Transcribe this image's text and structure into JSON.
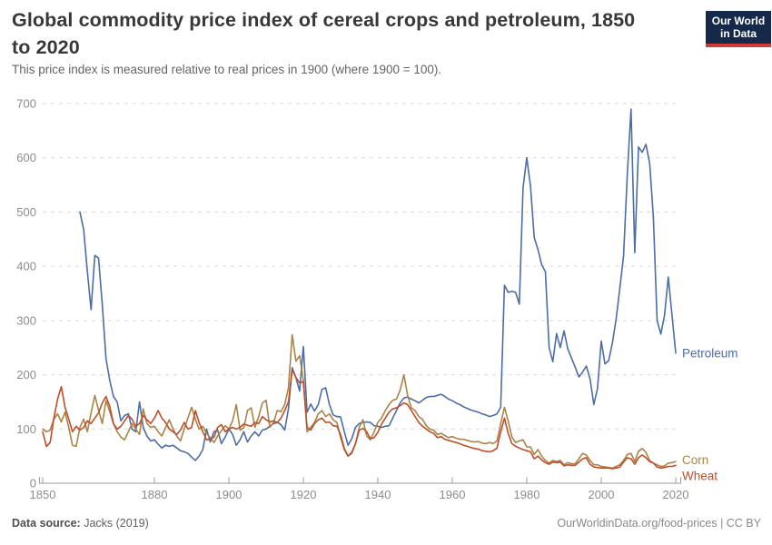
{
  "header": {
    "title": "Global commodity price index of cereal crops and petroleum, 1850 to 2020",
    "subtitle": "This price index is measured relative to real prices in 1900 (where 1900 = 100).",
    "logo": {
      "line1": "Our World",
      "line2": "in Data"
    }
  },
  "footer": {
    "datasource_label": "Data source:",
    "datasource_value": " Jacks (2019)",
    "credit": "OurWorldinData.org/food-prices | CC BY"
  },
  "chart_data": {
    "type": "line",
    "title": "Global commodity price index of cereal crops and petroleum, 1850 to 2020",
    "subtitle": "This price index is measured relative to real prices in 1900 (where 1900 = 100).",
    "xlabel": "",
    "ylabel": "",
    "xlim": [
      1850,
      2020
    ],
    "ylim": [
      0,
      700
    ],
    "xticks": [
      1850,
      1880,
      1900,
      1920,
      1940,
      1960,
      1980,
      2000,
      2020
    ],
    "yticks": [
      0,
      100,
      200,
      300,
      400,
      500,
      600,
      700
    ],
    "grid": "horizontal-dashed",
    "legend_position": "line-end-labels",
    "colors": {
      "grid": "#d9d9d9",
      "axis": "#9a9a9a",
      "tick_text": "#8c8c8c"
    },
    "series": [
      {
        "name": "Petroleum",
        "color": "#4c6da5",
        "start_year": 1860,
        "values": [
          500,
          468,
          390,
          320,
          420,
          415,
          330,
          230,
          190,
          160,
          150,
          115,
          125,
          128,
          100,
          95,
          150,
          103,
          87,
          78,
          80,
          72,
          65,
          70,
          68,
          70,
          65,
          60,
          58,
          55,
          48,
          42,
          50,
          62,
          100,
          76,
          95,
          98,
          73,
          85,
          100,
          90,
          70,
          80,
          95,
          76,
          87,
          95,
          87,
          98,
          100,
          105,
          110,
          112,
          108,
          98,
          137,
          213,
          195,
          170,
          252,
          131,
          146,
          133,
          145,
          173,
          176,
          145,
          126,
          123,
          122,
          95,
          70,
          82,
          103,
          110,
          112,
          113,
          112,
          106,
          105,
          103,
          105,
          106,
          120,
          134,
          148,
          157,
          159,
          155,
          152,
          148,
          153,
          158,
          160,
          160,
          162,
          164,
          160,
          155,
          152,
          148,
          145,
          141,
          138,
          135,
          133,
          131,
          128,
          126,
          123,
          125,
          128,
          140,
          365,
          352,
          354,
          352,
          330,
          545,
          600,
          548,
          453,
          431,
          403,
          390,
          250,
          224,
          276,
          250,
          281,
          248,
          231,
          214,
          196,
          205,
          216,
          192,
          145,
          175,
          262,
          220,
          226,
          259,
          303,
          360,
          420,
          570,
          690,
          425,
          620,
          610,
          625,
          590,
          490,
          300,
          275,
          310,
          380,
          310,
          240
        ]
      },
      {
        "name": "Corn",
        "color": "#a98446",
        "start_year": 1850,
        "values": [
          100,
          95,
          98,
          118,
          128,
          113,
          131,
          103,
          70,
          68,
          103,
          118,
          95,
          130,
          162,
          135,
          110,
          152,
          132,
          110,
          95,
          85,
          80,
          95,
          110,
          100,
          90,
          137,
          110,
          103,
          105,
          95,
          87,
          103,
          117,
          100,
          87,
          78,
          100,
          120,
          140,
          118,
          100,
          105,
          92,
          84,
          75,
          87,
          97,
          106,
          100,
          115,
          145,
          98,
          102,
          134,
          139,
          103,
          123,
          148,
          153,
          103,
          112,
          134,
          132,
          145,
          176,
          274,
          225,
          235,
          190,
          95,
          103,
          112,
          128,
          134,
          123,
          128,
          117,
          112,
          84,
          62,
          50,
          55,
          73,
          103,
          117,
          87,
          80,
          95,
          112,
          120,
          134,
          145,
          153,
          155,
          172,
          200,
          162,
          139,
          134,
          123,
          118,
          106,
          100,
          98,
          90,
          92,
          88,
          84,
          86,
          83,
          81,
          81,
          79,
          77,
          76,
          77,
          74,
          73,
          75,
          73,
          78,
          110,
          140,
          115,
          85,
          75,
          78,
          80,
          67,
          67,
          53,
          62,
          50,
          42,
          37,
          42,
          40,
          42,
          34,
          38,
          36,
          36,
          45,
          55,
          52,
          42,
          34,
          34,
          31,
          30,
          29,
          28,
          31,
          34,
          42,
          53,
          55,
          40,
          59,
          64,
          57,
          42,
          37,
          34,
          31,
          32,
          37,
          38,
          40
        ]
      },
      {
        "name": "Wheat",
        "color": "#bf4e2a",
        "start_year": 1850,
        "values": [
          95,
          68,
          75,
          120,
          155,
          178,
          140,
          118,
          95,
          105,
          98,
          103,
          115,
          110,
          120,
          130,
          148,
          160,
          142,
          110,
          100,
          105,
          115,
          125,
          118,
          105,
          110,
          125,
          117,
          110,
          120,
          134,
          120,
          112,
          100,
          95,
          90,
          98,
          112,
          100,
          103,
          134,
          112,
          95,
          80,
          81,
          85,
          103,
          108,
          95,
          100,
          103,
          100,
          103,
          109,
          107,
          105,
          112,
          110,
          123,
          117,
          113,
          115,
          112,
          120,
          134,
          150,
          209,
          195,
          185,
          187,
          103,
          98,
          110,
          117,
          120,
          112,
          113,
          106,
          105,
          90,
          64,
          50,
          57,
          73,
          98,
          101,
          95,
          82,
          84,
          94,
          109,
          120,
          131,
          137,
          139,
          143,
          148,
          145,
          134,
          123,
          112,
          105,
          100,
          95,
          92,
          84,
          86,
          81,
          79,
          77,
          75,
          73,
          70,
          68,
          66,
          64,
          63,
          60,
          59,
          58,
          60,
          65,
          95,
          120,
          92,
          73,
          68,
          65,
          62,
          60,
          58,
          45,
          50,
          43,
          38,
          35,
          39,
          38,
          39,
          32,
          34,
          33,
          33,
          39,
          45,
          47,
          35,
          30,
          29,
          28,
          28,
          28,
          27,
          28,
          30,
          39,
          47,
          45,
          35,
          47,
          52,
          47,
          40,
          37,
          30,
          28,
          29,
          31,
          31,
          33
        ]
      }
    ]
  }
}
